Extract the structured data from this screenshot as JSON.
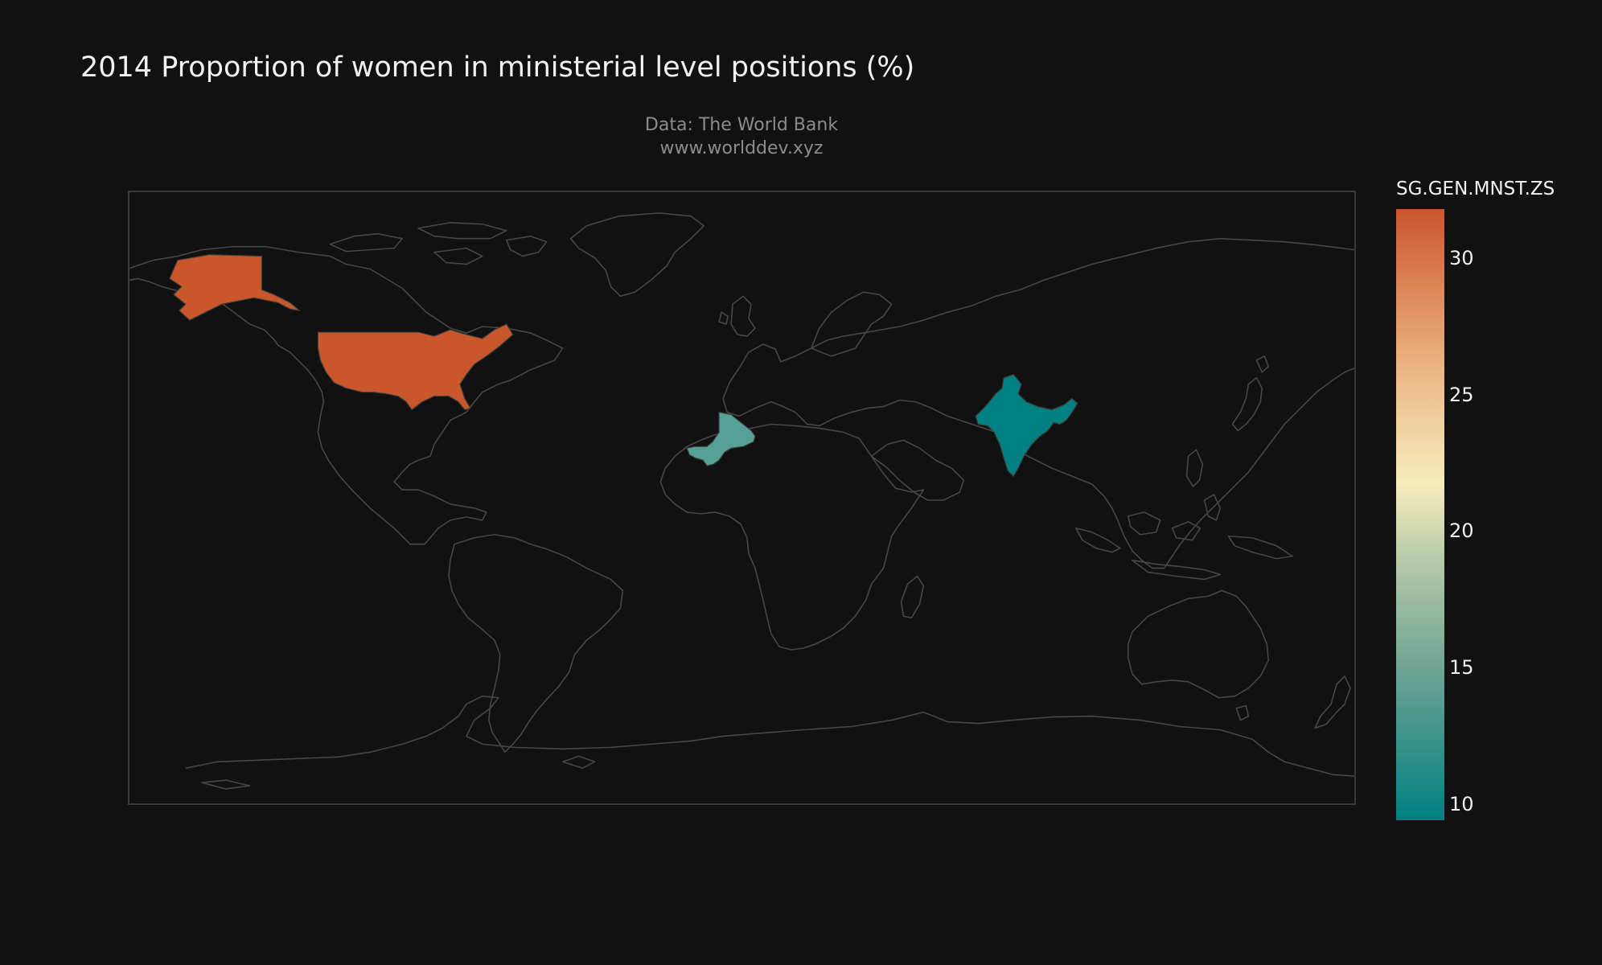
{
  "title": "2014 Proportion of women in ministerial level positions (%)",
  "subtitle_line1": "Data: The World Bank",
  "subtitle_line2": "www.worlddev.xyz",
  "colorbar": {
    "title": "SG.GEN.MNST.ZS",
    "range": [
      9.4,
      31.8
    ],
    "ticks": [
      {
        "value": 10,
        "label": "10"
      },
      {
        "value": 15,
        "label": "15"
      },
      {
        "value": 20,
        "label": "20"
      },
      {
        "value": 25,
        "label": "25"
      },
      {
        "value": 30,
        "label": "30"
      }
    ],
    "colorscale": [
      [
        0.0,
        "#008080"
      ],
      [
        0.25,
        "#70a494"
      ],
      [
        0.42,
        "#b4c8a8"
      ],
      [
        0.55,
        "#f6edbd"
      ],
      [
        0.72,
        "#edbb8a"
      ],
      [
        0.86,
        "#de8a5a"
      ],
      [
        1.0,
        "#ca562c"
      ]
    ]
  },
  "map_data": {
    "type": "choropleth",
    "projection": "equirectangular",
    "countries": [
      {
        "name": "United States",
        "value": 31.8,
        "color": "#ca562c"
      },
      {
        "name": "Mali",
        "value": 13.8,
        "color": "#56a197"
      },
      {
        "name": "India",
        "value": 9.4,
        "color": "#008080"
      }
    ],
    "background": "#111111",
    "coastline_color": "#474747"
  }
}
